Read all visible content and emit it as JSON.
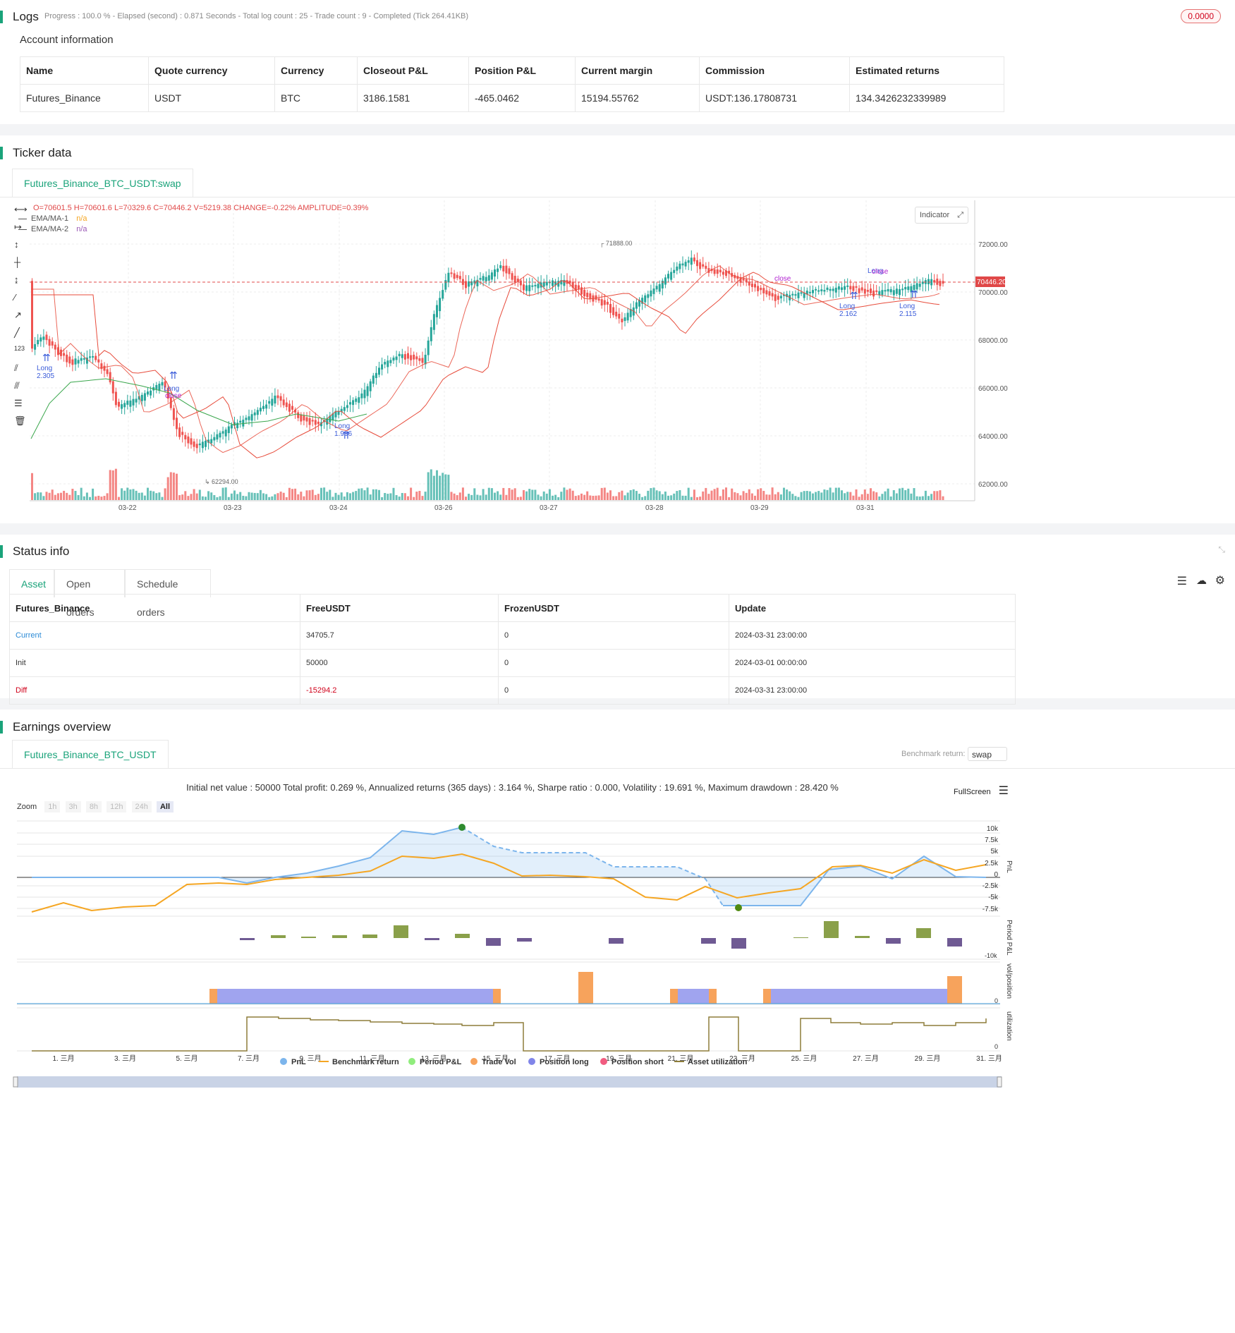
{
  "logs": {
    "title": "Logs",
    "summary": "Progress : 100.0 % - Elapsed (second) : 0.871  Seconds - Total log count : 25 - Trade count : 9 - Completed (Tick 264.41KB)",
    "badge": "0.0000"
  },
  "account": {
    "title": "Account information",
    "headers": [
      "Name",
      "Quote currency",
      "Currency",
      "Closeout P&L",
      "Position P&L",
      "Current margin",
      "Commission",
      "Estimated returns"
    ],
    "row": [
      "Futures_Binance",
      "USDT",
      "BTC",
      "3186.1581",
      "-465.0462",
      "15194.55762",
      "USDT:136.17808731",
      "134.3426232339989"
    ]
  },
  "ticker": {
    "title": "Ticker data",
    "tab": "Futures_Binance_BTC_USDT:swap",
    "ohlc": "O=70601.5 H=70601.6 L=70329.6 C=70446.2 V=5219.38 CHANGE=-0.22% AMPLITUDE=0.39%",
    "ema1_label": "EMA/MA-1",
    "ema1_value": "n/a",
    "ema2_label": "EMA/MA-2",
    "ema2_value": "n/a",
    "indicator_btn": "Indicator",
    "price_tag": "70446.20",
    "high_marker": "71888.00",
    "low_marker": "62294.00",
    "y_ticks": [
      "72000.00",
      "70000.00",
      "68000.00",
      "66000.00",
      "64000.00",
      "62000.00"
    ],
    "x_ticks": [
      "03-22",
      "03-23",
      "03-24",
      "03-26",
      "03-27",
      "03-28",
      "03-29",
      "03-31"
    ],
    "trade_labels": [
      {
        "text": "Long",
        "sub": "2.305"
      },
      {
        "text": "Long",
        "sub": ""
      },
      {
        "text": "close",
        "sub": ""
      },
      {
        "text": "Long",
        "sub": "1.996"
      },
      {
        "text": "close",
        "sub": ""
      },
      {
        "text": "Long",
        "sub": "2.162"
      },
      {
        "text": "Long",
        "sub": ""
      },
      {
        "text": "close",
        "sub": ""
      },
      {
        "text": "Long",
        "sub": "2.115"
      }
    ]
  },
  "status": {
    "title": "Status info",
    "tabs": [
      "Asset",
      "Open orders",
      "Schedule orders"
    ],
    "headers": [
      "Futures_Binance",
      "FreeUSDT",
      "FrozenUSDT",
      "Update"
    ],
    "rows": [
      [
        "Current",
        "34705.7",
        "0",
        "2024-03-31 23:00:00"
      ],
      [
        "Init",
        "50000",
        "0",
        "2024-03-01 00:00:00"
      ],
      [
        "Diff",
        "-15294.2",
        "0",
        "2024-03-31 23:00:00"
      ]
    ]
  },
  "earnings": {
    "title": "Earnings overview",
    "tab": "Futures_Binance_BTC_USDT",
    "benchmark_label": "Benchmark return:",
    "benchmark_value": "swap",
    "summary": "Initial net value : 50000 Total profit: 0.269 %, Annualized returns (365 days) : 3.164 %, Sharpe ratio : 0.000, Volatility : 19.691 %, Maximum drawdown : 28.420 %",
    "fullscreen": "FullScreen",
    "zoom_label": "Zoom",
    "zoom_options": [
      "1h",
      "3h",
      "8h",
      "12h",
      "24h",
      "All"
    ],
    "pnl_ticks": [
      "10k",
      "7.5k",
      "5k",
      "2.5k",
      "0",
      "-2.5k",
      "-5k",
      "-7.5k"
    ],
    "period_tick": "-10k",
    "vol_tick": "0",
    "util_tick": "0",
    "axis_titles": [
      "PnL",
      "Period P&L",
      "vol/position",
      "utilization"
    ],
    "x_ticks": [
      "1. 三月",
      "3. 三月",
      "5. 三月",
      "7. 三月",
      "9. 三月",
      "11. 三月",
      "13. 三月",
      "15. 三月",
      "17. 三月",
      "19. 三月",
      "21. 三月",
      "23. 三月",
      "25. 三月",
      "27. 三月",
      "29. 三月",
      "31. 三月"
    ],
    "legend": [
      {
        "name": "PnL",
        "color": "#7cb5ec"
      },
      {
        "name": "Benchmark return",
        "color": "#f5a623"
      },
      {
        "name": "Period P&L",
        "color": "#90ed7d"
      },
      {
        "name": "Trade Vol",
        "color": "#f7a35c"
      },
      {
        "name": "Position long",
        "color": "#8085e9"
      },
      {
        "name": "Position short",
        "color": "#f15c80"
      },
      {
        "name": "Asset utilization",
        "color": "#8d7d3a"
      }
    ]
  }
}
